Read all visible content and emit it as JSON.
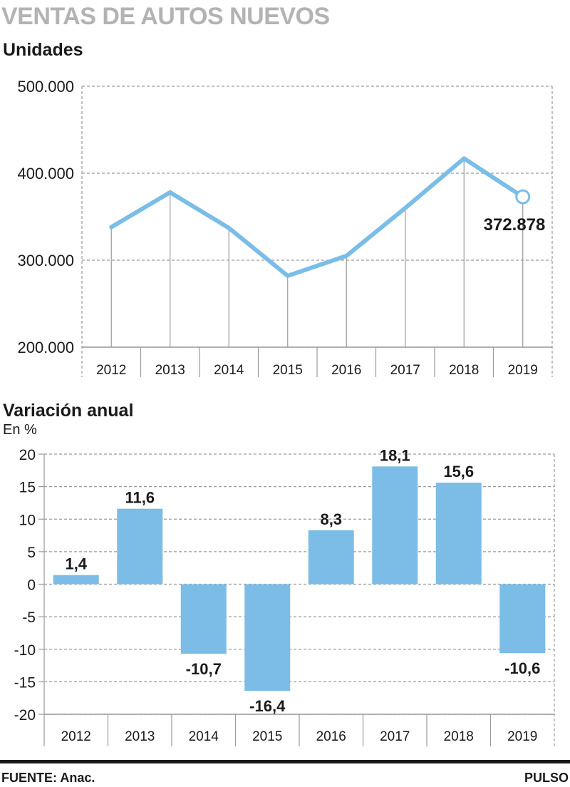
{
  "title": "VENTAS DE AUTOS NUEVOS",
  "colors": {
    "series": "#7bbde6",
    "grid": "#9a9a9a",
    "text": "#1a1a1a",
    "title": "#b3b3b3"
  },
  "footer": {
    "source": "FUENTE: Anac.",
    "brand": "PULSO"
  },
  "chart_data": [
    {
      "type": "line",
      "title": "Unidades",
      "x": [
        "2012",
        "2013",
        "2014",
        "2015",
        "2016",
        "2017",
        "2018",
        "2019"
      ],
      "values": [
        338000,
        378000,
        337000,
        282000,
        305000,
        360000,
        417000,
        372878
      ],
      "ylim": [
        200000,
        500000
      ],
      "yticks": [
        200000,
        300000,
        400000,
        500000
      ],
      "ytick_labels": [
        "200.000",
        "300.000",
        "400.000",
        "500.000"
      ],
      "annotation": {
        "index": 7,
        "text": "372.878"
      },
      "grid": true
    },
    {
      "type": "bar",
      "title": "Variación anual",
      "ylabel": "En %",
      "categories": [
        "2012",
        "2013",
        "2014",
        "2015",
        "2016",
        "2017",
        "2018",
        "2019"
      ],
      "values": [
        1.4,
        11.6,
        -10.7,
        -16.4,
        8.3,
        18.1,
        15.6,
        -10.6
      ],
      "labels": [
        "1,4",
        "11,6",
        "-10,7",
        "-16,4",
        "8,3",
        "18,1",
        "15,6",
        "-10,6"
      ],
      "ylim": [
        -20,
        20
      ],
      "yticks": [
        -20,
        -15,
        -10,
        -5,
        0,
        5,
        10,
        15,
        20
      ],
      "ytick_labels": [
        "-20",
        "-15",
        "-10",
        "-5",
        "0",
        "5",
        "10",
        "15",
        "20"
      ],
      "grid": true
    }
  ]
}
